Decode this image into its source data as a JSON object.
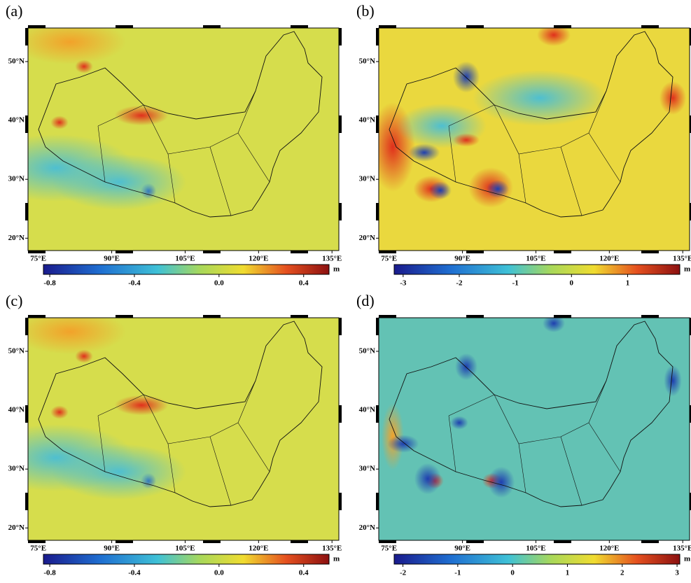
{
  "panels": [
    {
      "label": "(a)",
      "map": {
        "lonlim": [
          72.9,
          136.4
        ],
        "latlim": [
          17.9,
          55.7
        ],
        "lon_ticks": [
          {
            "value": 75,
            "label": "75°E"
          },
          {
            "value": 90,
            "label": "90°E"
          },
          {
            "value": 105,
            "label": "105°E"
          },
          {
            "value": 120,
            "label": "120°E"
          },
          {
            "value": 135,
            "label": "135°E"
          }
        ],
        "lat_ticks": [
          {
            "value": 20,
            "label": "20°N"
          },
          {
            "value": 30,
            "label": "30°N"
          },
          {
            "value": 40,
            "label": "40°N"
          },
          {
            "value": 50,
            "label": "50°N"
          }
        ]
      },
      "colorbar": {
        "unit": "m",
        "clim": [
          -0.83,
          0.52
        ],
        "ticks": [
          -0.8,
          -0.4,
          {
            "value": 0,
            "label": "0.0"
          },
          0.4
        ]
      }
    },
    {
      "label": "(b)",
      "map": {
        "lonlim": [
          72.9,
          136.4
        ],
        "latlim": [
          17.9,
          55.7
        ],
        "lon_ticks": [
          {
            "value": 75,
            "label": "75°E"
          },
          {
            "value": 90,
            "label": "90°E"
          },
          {
            "value": 105,
            "label": "105°E"
          },
          {
            "value": 120,
            "label": "120°E"
          },
          {
            "value": 135,
            "label": "135°E"
          }
        ],
        "lat_ticks": [
          {
            "value": 20,
            "label": "20°N"
          },
          {
            "value": 30,
            "label": "30°N"
          },
          {
            "value": 40,
            "label": "40°N"
          },
          {
            "value": 50,
            "label": "50°N"
          }
        ]
      },
      "colorbar": {
        "unit": "m",
        "clim": [
          -3.16,
          1.93
        ],
        "ticks": [
          -3,
          -2,
          -1,
          0,
          1
        ]
      }
    },
    {
      "label": "(c)",
      "map": {
        "lonlim": [
          72.9,
          136.4
        ],
        "latlim": [
          17.9,
          55.7
        ],
        "lon_ticks": [
          {
            "value": 75,
            "label": "75°E"
          },
          {
            "value": 90,
            "label": "90°E"
          },
          {
            "value": 105,
            "label": "105°E"
          },
          {
            "value": 120,
            "label": "120°E"
          },
          {
            "value": 135,
            "label": "135°E"
          }
        ],
        "lat_ticks": [
          {
            "value": 20,
            "label": "20°N"
          },
          {
            "value": 30,
            "label": "30°N"
          },
          {
            "value": 40,
            "label": "40°N"
          },
          {
            "value": 50,
            "label": "50°N"
          }
        ]
      },
      "colorbar": {
        "unit": "m",
        "clim": [
          -0.83,
          0.52
        ],
        "ticks": [
          -0.8,
          -0.4,
          {
            "value": 0,
            "label": "0.0"
          },
          0.4
        ]
      }
    },
    {
      "label": "(d)",
      "map": {
        "lonlim": [
          72.9,
          136.4
        ],
        "latlim": [
          17.9,
          55.7
        ],
        "lon_ticks": [
          {
            "value": 75,
            "label": "75°E"
          },
          {
            "value": 90,
            "label": "90°E"
          },
          {
            "value": 105,
            "label": "105°E"
          },
          {
            "value": 120,
            "label": "120°E"
          },
          {
            "value": 135,
            "label": "135°E"
          }
        ],
        "lat_ticks": [
          {
            "value": 20,
            "label": "20°N"
          },
          {
            "value": 30,
            "label": "30°N"
          },
          {
            "value": 40,
            "label": "40°N"
          },
          {
            "value": 50,
            "label": "50°N"
          }
        ]
      },
      "colorbar": {
        "unit": "m",
        "clim": [
          -2.16,
          3.05
        ],
        "ticks": [
          -2,
          -1,
          0,
          1,
          2,
          3
        ]
      }
    }
  ]
}
